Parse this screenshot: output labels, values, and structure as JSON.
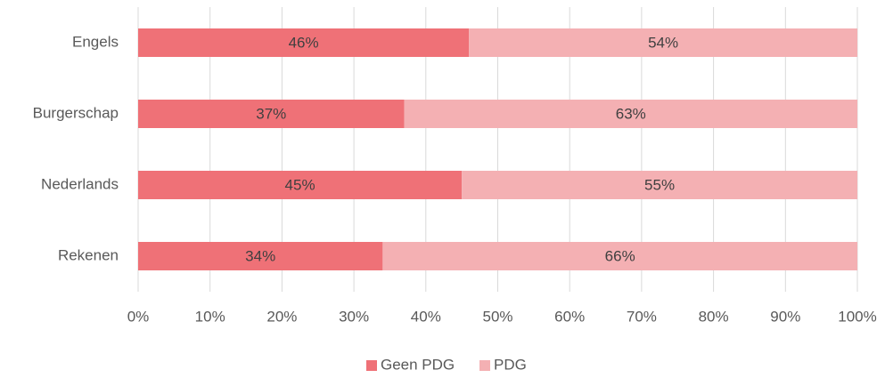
{
  "chart_data": {
    "type": "stacked_bar_horizontal",
    "categories": [
      "Engels",
      "Burgerschap",
      "Nederlands",
      "Rekenen"
    ],
    "series": [
      {
        "name": "Geen PDG",
        "color": "#ef7177",
        "values": [
          46,
          37,
          45,
          34
        ],
        "value_labels": [
          "46%",
          "37%",
          "45%",
          "34%"
        ]
      },
      {
        "name": "PDG",
        "color": "#f4b0b3",
        "values": [
          54,
          63,
          55,
          66
        ],
        "value_labels": [
          "54%",
          "63%",
          "55%",
          "66%"
        ]
      }
    ],
    "xlim": [
      0,
      100
    ],
    "xticks": [
      {
        "value": 0,
        "label": "0%"
      },
      {
        "value": 10,
        "label": "10%"
      },
      {
        "value": 20,
        "label": "20%"
      },
      {
        "value": 30,
        "label": "30%"
      },
      {
        "value": 40,
        "label": "40%"
      },
      {
        "value": 50,
        "label": "50%"
      },
      {
        "value": 60,
        "label": "60%"
      },
      {
        "value": 70,
        "label": "70%"
      },
      {
        "value": 80,
        "label": "80%"
      },
      {
        "value": 90,
        "label": "90%"
      },
      {
        "value": 100,
        "label": "100%"
      }
    ],
    "grid": true,
    "legend": "bottom"
  }
}
